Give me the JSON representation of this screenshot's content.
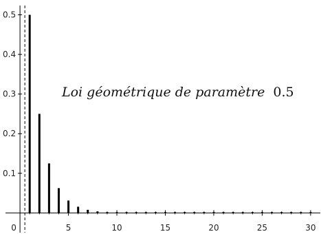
{
  "chart_data": {
    "type": "bar",
    "title_italic": "Loi géométrique de paramètre",
    "title_value": "0.5",
    "xlabel": "",
    "ylabel": "",
    "xlim": [
      -1,
      31
    ],
    "ylim": [
      -0.015,
      0.52
    ],
    "x_ticks": [
      "0",
      "5",
      "10",
      "15",
      "20",
      "25",
      "30"
    ],
    "y_ticks": [
      "0.1",
      "0.2",
      "0.3",
      "0.4",
      "0.5"
    ],
    "reference_line": {
      "x": 0.5,
      "style": "dashed"
    },
    "grid": false,
    "bar_color": "#000000",
    "x": [
      1,
      2,
      3,
      4,
      5,
      6,
      7,
      8,
      9,
      10,
      11,
      12,
      13,
      14,
      15,
      16,
      17,
      18,
      19,
      20,
      21,
      22,
      23,
      24,
      25,
      26,
      27,
      28,
      29,
      30
    ],
    "values": [
      0.5,
      0.25,
      0.125,
      0.0625,
      0.03125,
      0.015625,
      0.0078125,
      0.00390625,
      0.001953125,
      0.0009765625,
      0.00048828125,
      0.000244140625,
      0.0001220703125,
      6.103515625e-05,
      3.0517578125e-05,
      1.52587890625e-05,
      7.62939453125e-06,
      3.814697265625e-06,
      1.9073486328125e-06,
      9.5367431640625e-07,
      4.76837158203125e-07,
      2.384185791015625e-07,
      1.1920928955078125e-07,
      5.960464477539063e-08,
      2.9802322387695312e-08,
      1.4901161193847656e-08,
      7.450580596923828e-09,
      3.725290298461914e-09,
      1.862645149230957e-09,
      9.313225746154785e-10
    ]
  }
}
